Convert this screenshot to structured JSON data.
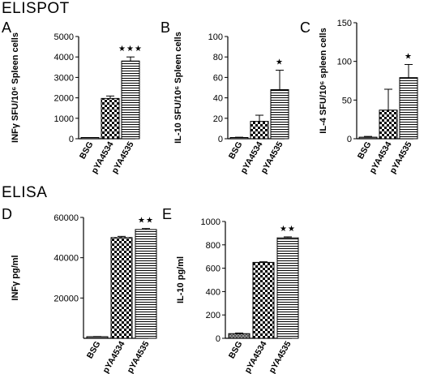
{
  "sections": {
    "top_title": "ELISPOT",
    "bottom_title": "ELISA"
  },
  "colors": {
    "bar_fill": "#ffffff",
    "stroke": "#000000",
    "bsg_fill": "#888888"
  },
  "chart_data": [
    {
      "type": "bar",
      "panel_letter": "A",
      "title": "",
      "ylabel": "INFγ SFU/10⁶ Spleen cells",
      "categories": [
        "BSG",
        "pYA4534",
        "pYA4535"
      ],
      "values": [
        0,
        1970,
        3800
      ],
      "errors": [
        0,
        120,
        200
      ],
      "patterns": [
        "solid",
        "checker",
        "hlines"
      ],
      "significance": [
        "",
        "",
        "★★★"
      ],
      "ylim": [
        0,
        5000
      ],
      "yticks": [
        0,
        1000,
        2000,
        3000,
        4000,
        5000
      ],
      "grid": false
    },
    {
      "type": "bar",
      "panel_letter": "B",
      "title": "",
      "ylabel": "IL-10 SFU/10⁶ Spleen cells",
      "categories": [
        "BSG",
        "pYA4534",
        "pYA4535"
      ],
      "values": [
        1,
        17,
        48
      ],
      "errors": [
        0.5,
        6,
        19
      ],
      "patterns": [
        "solid",
        "checker",
        "hlines"
      ],
      "significance": [
        "",
        "",
        "★"
      ],
      "ylim": [
        0,
        100
      ],
      "yticks": [
        0,
        20,
        40,
        60,
        80,
        100
      ],
      "grid": false
    },
    {
      "type": "bar",
      "panel_letter": "C",
      "title": "",
      "ylabel": "IL-4 SFU/10⁶ spleen cells",
      "categories": [
        "BSG",
        "pYA4534",
        "pYA4535"
      ],
      "values": [
        2,
        37,
        79
      ],
      "errors": [
        1,
        27,
        17
      ],
      "patterns": [
        "solid",
        "checker",
        "hlines"
      ],
      "significance": [
        "",
        "",
        "★"
      ],
      "ylim": [
        0,
        150
      ],
      "yticks": [
        0,
        50,
        100,
        150
      ],
      "grid": false
    },
    {
      "type": "bar",
      "panel_letter": "D",
      "title": "",
      "ylabel": "INFγ pg/ml",
      "categories": [
        "BSG",
        "pYA4534",
        "pYA4535"
      ],
      "values": [
        800,
        50000,
        54000
      ],
      "errors": [
        100,
        600,
        500
      ],
      "patterns": [
        "solid",
        "checker",
        "hlines"
      ],
      "significance": [
        "",
        "",
        "★★"
      ],
      "ylim": [
        0,
        60000
      ],
      "yticks": [
        20000,
        40000,
        60000
      ],
      "grid": false
    },
    {
      "type": "bar",
      "panel_letter": "E",
      "title": "",
      "ylabel": "IL-10 pg/ml",
      "categories": [
        "BSG",
        "pYA4534",
        "pYA4535"
      ],
      "values": [
        40,
        650,
        860
      ],
      "errors": [
        5,
        5,
        8
      ],
      "patterns": [
        "crosshatch",
        "checker",
        "hlines"
      ],
      "significance": [
        "",
        "",
        "★★"
      ],
      "ylim": [
        0,
        1000
      ],
      "yticks": [
        0,
        200,
        400,
        600,
        800,
        1000
      ],
      "grid": false
    }
  ]
}
